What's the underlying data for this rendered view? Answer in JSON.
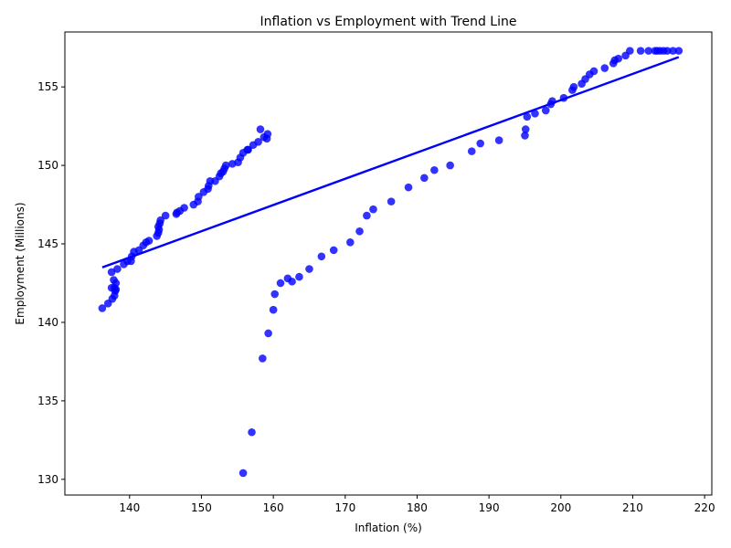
{
  "chart_data": {
    "type": "scatter",
    "title": "Inflation vs Employment with Trend Line",
    "xlabel": "Inflation (%)",
    "ylabel": "Employment (Millions)",
    "xlim": [
      131,
      221
    ],
    "ylim": [
      129.0,
      158.5
    ],
    "xticks": [
      140,
      150,
      160,
      170,
      180,
      190,
      200,
      210,
      220
    ],
    "yticks": [
      130,
      135,
      140,
      145,
      150,
      155
    ],
    "grid": false,
    "point_color": "#0000ff",
    "line_color": "#0000ff",
    "series": [
      {
        "type": "scatter",
        "x": [
          136.2,
          137.0,
          137.6,
          137.9,
          138.0,
          138.1,
          137.9,
          137.5,
          138.1,
          137.8,
          137.5,
          138.3,
          139.2,
          139.7,
          140.2,
          140.3,
          140.6,
          141.3,
          141.9,
          142.3,
          142.7,
          143.8,
          144.0,
          144.1,
          144.0,
          144.2,
          144.3,
          145.0,
          146.5,
          146.6,
          147.0,
          147.6,
          148.9,
          149.5,
          149.6,
          150.3,
          150.9,
          151.0,
          151.2,
          151.9,
          152.5,
          152.7,
          153.0,
          153.2,
          153.4,
          154.3,
          155.1,
          155.4,
          155.8,
          156.4,
          156.5,
          157.2,
          157.9,
          158.2,
          158.7,
          159.1,
          159.2,
          155.8,
          157.0,
          158.5,
          159.3,
          160.0,
          160.2,
          161.0,
          162.0,
          162.6,
          163.6,
          165.0,
          166.7,
          168.4,
          170.7,
          172.0,
          173.0,
          173.9,
          176.4,
          178.8,
          181.0,
          182.4,
          184.6,
          187.6,
          188.8,
          191.4,
          195.0,
          195.1,
          195.3,
          196.4,
          197.9,
          198.6,
          198.8,
          200.4,
          201.6,
          201.8,
          202.9,
          203.4,
          204.0,
          204.6,
          206.1,
          207.3,
          207.5,
          208.0,
          209.0,
          209.6,
          211.1,
          212.2,
          213.1,
          213.4,
          213.8,
          214.3,
          214.8,
          215.6,
          216.4
        ],
        "y": [
          140.9,
          141.2,
          141.5,
          141.7,
          142.0,
          142.1,
          142.2,
          142.2,
          142.5,
          142.7,
          143.2,
          143.4,
          143.7,
          143.9,
          143.9,
          144.2,
          144.5,
          144.6,
          144.9,
          145.1,
          145.2,
          145.5,
          145.7,
          145.9,
          146.1,
          146.3,
          146.5,
          146.8,
          146.9,
          147.0,
          147.1,
          147.3,
          147.5,
          147.7,
          148.0,
          148.3,
          148.5,
          148.7,
          149.0,
          149.0,
          149.3,
          149.5,
          149.6,
          149.8,
          150.0,
          150.1,
          150.2,
          150.5,
          150.8,
          151.0,
          151.0,
          151.3,
          151.5,
          152.3,
          151.8,
          151.7,
          152.0,
          130.4,
          133.0,
          137.7,
          139.3,
          140.8,
          141.8,
          142.5,
          142.8,
          142.6,
          142.9,
          143.4,
          144.2,
          144.6,
          145.1,
          145.8,
          146.8,
          147.2,
          147.7,
          148.6,
          149.2,
          149.7,
          150.0,
          150.9,
          151.4,
          151.6,
          151.9,
          152.3,
          153.1,
          153.3,
          153.5,
          153.9,
          154.1,
          154.3,
          154.8,
          155.0,
          155.2,
          155.5,
          155.8,
          156.0,
          156.2,
          156.5,
          156.7,
          156.8,
          157.0,
          157.3,
          157.3,
          157.3,
          157.3,
          157.3,
          157.3,
          157.3,
          157.3,
          157.3,
          157.3
        ]
      },
      {
        "type": "line",
        "name": "trend",
        "x": [
          136.2,
          216.4
        ],
        "y": [
          143.5,
          156.9
        ]
      }
    ]
  }
}
